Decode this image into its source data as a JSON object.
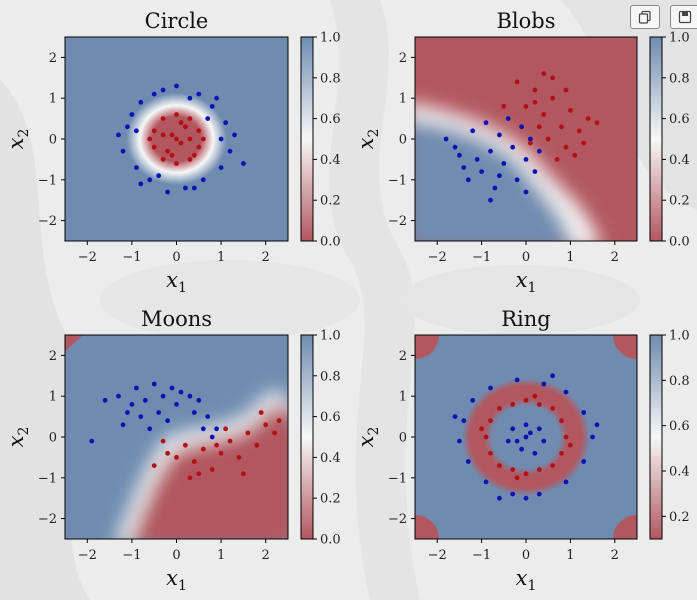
{
  "toolbar": {
    "copy_icon": "copy-icon",
    "save_icon": "save-icon"
  },
  "colors": {
    "class0": "#0a14b4",
    "class1": "#b40f14",
    "cmap_low": "#b2575f",
    "cmap_mid": "#f7f7f7",
    "cmap_high": "#6f8cb0"
  },
  "chart_data": [
    {
      "type": "scatter",
      "title": "Circle",
      "xlabel": "x1",
      "ylabel": "x2",
      "xlim": [
        -2.5,
        2.5
      ],
      "ylim": [
        -2.5,
        2.5
      ],
      "xticks": [
        -2,
        -1,
        0,
        1,
        2
      ],
      "yticks": [
        -2,
        -1,
        0,
        1,
        2
      ],
      "colorbar": {
        "min": 0.0,
        "max": 1.0,
        "ticks": [
          0.0,
          0.2,
          0.4,
          0.6,
          0.8,
          1.0
        ],
        "ticklabels": [
          "0.0",
          "0.2",
          "0.4",
          "0.6",
          "0.8",
          "1.0"
        ]
      },
      "series": [
        {
          "class": 0,
          "color": "#0a14b4",
          "points": [
            [
              -1.0,
              0.6
            ],
            [
              -0.8,
              0.9
            ],
            [
              -0.5,
              1.1
            ],
            [
              0.0,
              1.3
            ],
            [
              0.5,
              1.1
            ],
            [
              0.8,
              0.8
            ],
            [
              1.1,
              0.4
            ],
            [
              1.3,
              0.1
            ],
            [
              1.2,
              -0.3
            ],
            [
              1.0,
              -0.7
            ],
            [
              0.6,
              -1.0
            ],
            [
              0.2,
              -1.2
            ],
            [
              -0.2,
              -1.3
            ],
            [
              -0.6,
              -1.0
            ],
            [
              -0.9,
              -0.7
            ],
            [
              -1.2,
              -0.3
            ],
            [
              -1.3,
              0.1
            ],
            [
              -1.1,
              0.3
            ],
            [
              0.9,
              1.0
            ],
            [
              1.5,
              -0.6
            ],
            [
              -0.3,
              1.2
            ],
            [
              0.4,
              -1.2
            ],
            [
              -0.8,
              -1.1
            ],
            [
              0.7,
              0.5
            ],
            [
              -0.9,
              0.2
            ],
            [
              1.0,
              0.0
            ],
            [
              -0.4,
              -0.9
            ],
            [
              0.3,
              1.0
            ]
          ]
        },
        {
          "class": 1,
          "color": "#b40f14",
          "points": [
            [
              -0.5,
              0.2
            ],
            [
              -0.3,
              0.5
            ],
            [
              0.0,
              0.6
            ],
            [
              0.3,
              0.5
            ],
            [
              0.5,
              0.2
            ],
            [
              0.5,
              -0.2
            ],
            [
              0.3,
              -0.5
            ],
            [
              0.0,
              -0.6
            ],
            [
              -0.3,
              -0.5
            ],
            [
              -0.5,
              -0.2
            ],
            [
              -0.1,
              0.1
            ],
            [
              0.1,
              -0.1
            ],
            [
              0.2,
              0.3
            ],
            [
              -0.2,
              -0.3
            ],
            [
              0.6,
              0.0
            ],
            [
              -0.6,
              0.0
            ],
            [
              0.0,
              0.0
            ],
            [
              0.3,
              0.0
            ],
            [
              -0.3,
              0.1
            ],
            [
              0.1,
              0.4
            ],
            [
              -0.1,
              -0.4
            ],
            [
              0.4,
              -0.4
            ]
          ]
        }
      ]
    },
    {
      "type": "scatter",
      "title": "Blobs",
      "xlabel": "x1",
      "ylabel": "x2",
      "xlim": [
        -2.5,
        2.5
      ],
      "ylim": [
        -2.5,
        2.5
      ],
      "xticks": [
        -2,
        -1,
        0,
        1,
        2
      ],
      "yticks": [
        -2,
        -1,
        0,
        1,
        2
      ],
      "colorbar": {
        "min": 0.0,
        "max": 1.0,
        "ticks": [
          0.0,
          0.2,
          0.4,
          0.6,
          0.8,
          1.0
        ],
        "ticklabels": [
          "0.0",
          "0.2",
          "0.4",
          "0.6",
          "0.8",
          "1.0"
        ]
      },
      "series": [
        {
          "class": 0,
          "color": "#0a14b4",
          "points": [
            [
              -1.8,
              0.0
            ],
            [
              -1.5,
              -0.4
            ],
            [
              -1.2,
              0.2
            ],
            [
              -1.0,
              -0.8
            ],
            [
              -0.8,
              -0.3
            ],
            [
              -0.6,
              0.1
            ],
            [
              -0.5,
              -0.6
            ],
            [
              -0.3,
              -0.2
            ],
            [
              -0.2,
              -1.0
            ],
            [
              0.0,
              -0.5
            ],
            [
              0.1,
              0.0
            ],
            [
              -1.3,
              -1.0
            ],
            [
              -0.9,
              0.4
            ],
            [
              -0.4,
              0.5
            ],
            [
              -0.7,
              -1.2
            ],
            [
              0.2,
              -0.8
            ],
            [
              -1.1,
              -0.5
            ],
            [
              -0.1,
              0.3
            ],
            [
              0.3,
              -0.3
            ],
            [
              -1.6,
              -0.2
            ],
            [
              -0.6,
              -0.9
            ],
            [
              0.0,
              -1.3
            ],
            [
              -0.8,
              -1.5
            ],
            [
              -1.4,
              -0.7
            ]
          ]
        },
        {
          "class": 1,
          "color": "#b40f14",
          "points": [
            [
              -0.2,
              1.4
            ],
            [
              0.2,
              1.2
            ],
            [
              0.4,
              0.6
            ],
            [
              0.6,
              1.0
            ],
            [
              0.8,
              0.3
            ],
            [
              1.0,
              0.7
            ],
            [
              0.5,
              0.0
            ],
            [
              0.9,
              -0.2
            ],
            [
              1.2,
              0.2
            ],
            [
              0.3,
              0.3
            ],
            [
              0.6,
              1.5
            ],
            [
              1.4,
              0.5
            ],
            [
              0.0,
              0.8
            ],
            [
              0.7,
              -0.5
            ],
            [
              1.1,
              -0.4
            ],
            [
              1.3,
              -0.1
            ],
            [
              0.2,
              0.9
            ],
            [
              -0.5,
              0.8
            ],
            [
              0.9,
              1.2
            ],
            [
              1.6,
              0.4
            ],
            [
              0.4,
              1.6
            ],
            [
              0.1,
              -0.1
            ]
          ]
        }
      ]
    },
    {
      "type": "scatter",
      "title": "Moons",
      "xlabel": "x1",
      "ylabel": "x2",
      "xlim": [
        -2.5,
        2.5
      ],
      "ylim": [
        -2.5,
        2.5
      ],
      "xticks": [
        -2,
        -1,
        0,
        1,
        2
      ],
      "yticks": [
        -2,
        -1,
        0,
        1,
        2
      ],
      "colorbar": {
        "min": 0.0,
        "max": 1.0,
        "ticks": [
          0.0,
          0.2,
          0.4,
          0.6,
          0.8,
          1.0
        ],
        "ticklabels": [
          "0.0",
          "0.2",
          "0.4",
          "0.6",
          "0.8",
          "1.0"
        ]
      },
      "series": [
        {
          "class": 0,
          "color": "#0a14b4",
          "points": [
            [
              -1.9,
              -0.1
            ],
            [
              -1.6,
              0.9
            ],
            [
              -1.3,
              1.0
            ],
            [
              -1.1,
              0.6
            ],
            [
              -0.9,
              1.2
            ],
            [
              -0.7,
              0.9
            ],
            [
              -0.5,
              1.3
            ],
            [
              -0.3,
              1.0
            ],
            [
              -0.1,
              1.2
            ],
            [
              0.1,
              1.1
            ],
            [
              0.3,
              1.0
            ],
            [
              0.5,
              0.9
            ],
            [
              0.7,
              0.5
            ],
            [
              0.9,
              0.2
            ],
            [
              -1.2,
              0.3
            ],
            [
              -0.8,
              0.5
            ],
            [
              -0.4,
              0.6
            ],
            [
              0.0,
              0.8
            ],
            [
              0.4,
              0.6
            ],
            [
              -1.0,
              0.8
            ],
            [
              -0.6,
              0.2
            ],
            [
              0.6,
              0.2
            ],
            [
              0.8,
              0.0
            ],
            [
              -0.2,
              0.4
            ]
          ]
        },
        {
          "class": 1,
          "color": "#b40f14",
          "points": [
            [
              -0.5,
              -0.7
            ],
            [
              -0.2,
              -0.4
            ],
            [
              0.0,
              -0.5
            ],
            [
              0.2,
              -0.2
            ],
            [
              0.4,
              -0.6
            ],
            [
              0.6,
              -0.3
            ],
            [
              0.8,
              -0.8
            ],
            [
              1.0,
              -0.4
            ],
            [
              1.2,
              -0.1
            ],
            [
              1.4,
              -0.5
            ],
            [
              1.6,
              0.1
            ],
            [
              1.8,
              -0.2
            ],
            [
              2.0,
              0.3
            ],
            [
              2.2,
              0.1
            ],
            [
              2.3,
              0.4
            ],
            [
              1.1,
              0.2
            ],
            [
              0.5,
              -0.9
            ],
            [
              0.9,
              -0.2
            ],
            [
              1.5,
              -0.9
            ],
            [
              1.9,
              0.6
            ],
            [
              -0.3,
              -0.1
            ],
            [
              0.3,
              -1.0
            ]
          ]
        }
      ]
    },
    {
      "type": "scatter",
      "title": "Ring",
      "xlabel": "x1",
      "ylabel": "x2",
      "xlim": [
        -2.5,
        2.5
      ],
      "ylim": [
        -2.5,
        2.5
      ],
      "xticks": [
        -2,
        -1,
        0,
        1,
        2
      ],
      "yticks": [
        -2,
        -1,
        0,
        1,
        2
      ],
      "colorbar": {
        "min": 0.1,
        "max": 1.0,
        "ticks": [
          0.2,
          0.4,
          0.6,
          0.8,
          1.0
        ],
        "ticklabels": [
          "0.2",
          "0.4",
          "0.6",
          "0.8",
          "1.0"
        ]
      },
      "series": [
        {
          "class": 0,
          "color": "#0a14b4",
          "points": [
            [
              -0.3,
              0.2
            ],
            [
              0.0,
              0.3
            ],
            [
              0.3,
              0.2
            ],
            [
              0.4,
              -0.1
            ],
            [
              0.2,
              -0.4
            ],
            [
              -0.1,
              -0.3
            ],
            [
              -0.4,
              -0.1
            ],
            [
              0.0,
              0.0
            ],
            [
              0.1,
              0.1
            ],
            [
              -0.2,
              -0.1
            ],
            [
              -1.4,
              0.4
            ],
            [
              -1.2,
              0.9
            ],
            [
              -0.8,
              1.2
            ],
            [
              -0.2,
              1.4
            ],
            [
              0.4,
              1.3
            ],
            [
              0.9,
              1.1
            ],
            [
              1.3,
              0.6
            ],
            [
              1.5,
              0.0
            ],
            [
              1.3,
              -0.6
            ],
            [
              0.9,
              -1.1
            ],
            [
              0.3,
              -1.4
            ],
            [
              -0.3,
              -1.4
            ],
            [
              -0.9,
              -1.1
            ],
            [
              -1.3,
              -0.6
            ],
            [
              -1.5,
              -0.1
            ],
            [
              1.6,
              0.3
            ],
            [
              -1.6,
              0.5
            ],
            [
              0.0,
              -1.5
            ],
            [
              0.6,
              1.5
            ],
            [
              -0.6,
              -1.5
            ]
          ]
        },
        {
          "class": 1,
          "color": "#b40f14",
          "points": [
            [
              -0.9,
              0.0
            ],
            [
              -0.8,
              0.4
            ],
            [
              -0.6,
              0.7
            ],
            [
              -0.3,
              0.8
            ],
            [
              0.0,
              0.9
            ],
            [
              0.3,
              0.8
            ],
            [
              0.6,
              0.7
            ],
            [
              0.8,
              0.4
            ],
            [
              0.9,
              0.0
            ],
            [
              0.8,
              -0.4
            ],
            [
              0.6,
              -0.7
            ],
            [
              0.3,
              -0.8
            ],
            [
              0.0,
              -0.9
            ],
            [
              -0.3,
              -0.8
            ],
            [
              -0.6,
              -0.7
            ],
            [
              -0.8,
              -0.4
            ],
            [
              -1.0,
              0.2
            ],
            [
              1.0,
              -0.2
            ],
            [
              0.2,
              1.0
            ],
            [
              -0.2,
              -1.0
            ]
          ]
        }
      ]
    }
  ]
}
